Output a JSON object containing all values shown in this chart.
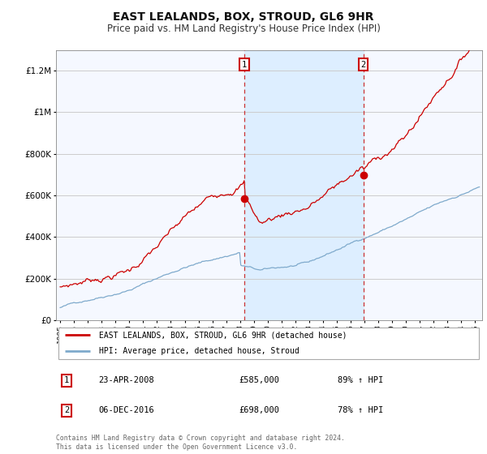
{
  "title": "EAST LEALANDS, BOX, STROUD, GL6 9HR",
  "subtitle": "Price paid vs. HM Land Registry's House Price Index (HPI)",
  "ylim": [
    0,
    1300000
  ],
  "yticks": [
    0,
    200000,
    400000,
    600000,
    800000,
    1000000,
    1200000
  ],
  "ytick_labels": [
    "£0",
    "£200K",
    "£400K",
    "£600K",
    "£800K",
    "£1M",
    "£1.2M"
  ],
  "xlim_start": 1994.7,
  "xlim_end": 2025.5,
  "background_color": "#ffffff",
  "plot_bg_color": "#f5f8ff",
  "grid_color": "#cccccc",
  "red_line_color": "#cc0000",
  "blue_line_color": "#7faacc",
  "sale1_x": 2008.31,
  "sale1_y": 585000,
  "sale1_label": "1",
  "sale2_x": 2016.92,
  "sale2_y": 698000,
  "sale2_label": "2",
  "vline_color": "#cc3333",
  "highlight_color": "#ddeeff",
  "legend_line1": "EAST LEALANDS, BOX, STROUD, GL6 9HR (detached house)",
  "legend_line2": "HPI: Average price, detached house, Stroud",
  "table_row1_num": "1",
  "table_row1_date": "23-APR-2008",
  "table_row1_price": "£585,000",
  "table_row1_hpi": "89% ↑ HPI",
  "table_row2_num": "2",
  "table_row2_date": "06-DEC-2016",
  "table_row2_price": "£698,000",
  "table_row2_hpi": "78% ↑ HPI",
  "footnote": "Contains HM Land Registry data © Crown copyright and database right 2024.\nThis data is licensed under the Open Government Licence v3.0."
}
